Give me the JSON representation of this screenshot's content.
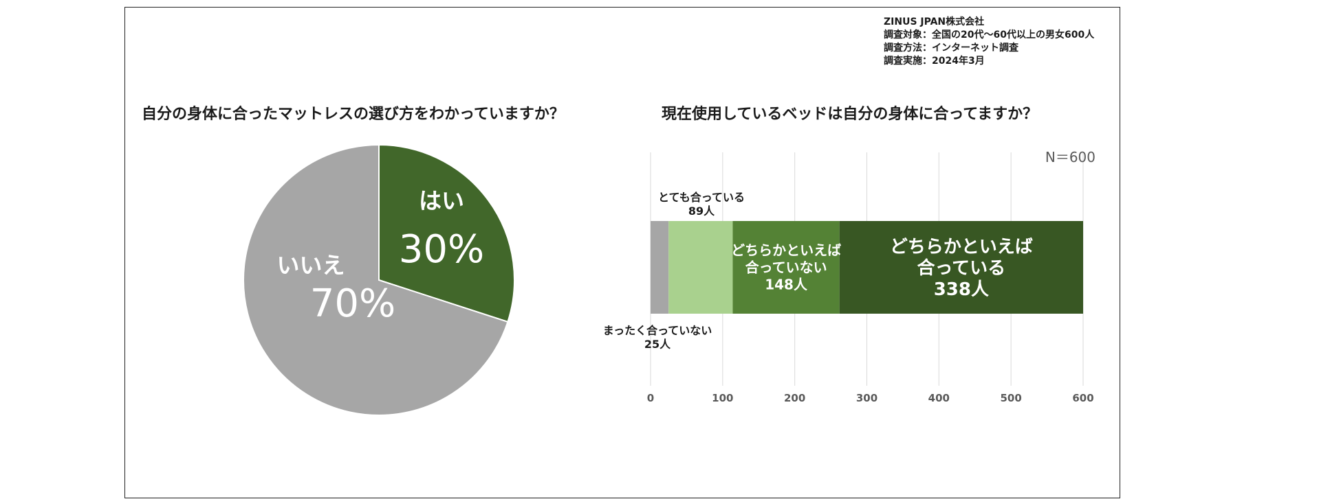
{
  "source": {
    "lines": [
      "ZINUS JPAN株式会社",
      "調査対象：全国の20代〜60代以上の男女600人",
      "調査方法：インターネット調査",
      "調査実施：2024年3月"
    ]
  },
  "colors": {
    "gray": "#a6a6a6",
    "light_green": "#a9d18e",
    "mid_green": "#548235",
    "dark_green": "#385723",
    "pie_green": "#41672a"
  },
  "chart_data": [
    {
      "type": "pie",
      "title": "自分の身体に合ったマットレスの選び方をわかっていますか？",
      "slices": [
        {
          "label": "はい",
          "value": 30,
          "value_label": "30%",
          "color": "#41672a"
        },
        {
          "label": "いいえ",
          "value": 70,
          "value_label": "70%",
          "color": "#a6a6a6"
        }
      ],
      "start": "12 o'clock",
      "direction": "clockwise",
      "legend": "none"
    },
    {
      "type": "bar",
      "orientation": "horizontal",
      "stacked": true,
      "title": "現在使用しているベッドは自分の身体に合ってますか？",
      "annotation": "N＝600",
      "xlim": [
        0,
        600
      ],
      "x_ticks": [
        0,
        100,
        200,
        300,
        400,
        500,
        600
      ],
      "grid": "vertical",
      "segments": [
        {
          "label_lines": [
            "まったく合っていない",
            "25人"
          ],
          "value": 25,
          "color": "#a6a6a6",
          "label_position": "below"
        },
        {
          "label_lines": [
            "とても合っている",
            "89人"
          ],
          "value": 89,
          "color": "#a9d18e",
          "label_position": "above"
        },
        {
          "label_lines": [
            "どちらかといえば",
            "合っていない",
            "148人"
          ],
          "value": 148,
          "color": "#548235",
          "label_position": "inside"
        },
        {
          "label_lines": [
            "どちらかといえば",
            "合っている",
            "338人"
          ],
          "value": 338,
          "color": "#385723",
          "label_position": "inside"
        }
      ]
    }
  ]
}
